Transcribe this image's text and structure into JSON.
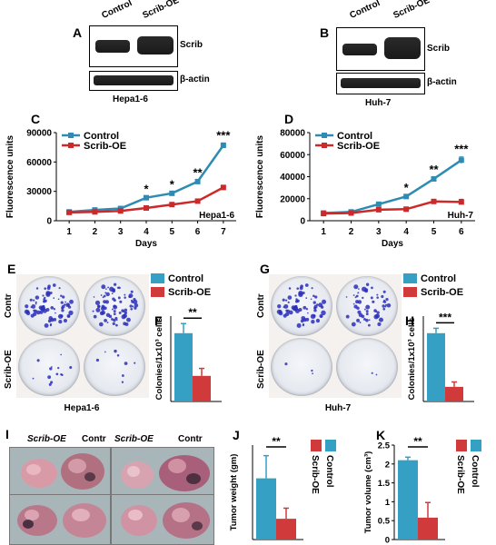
{
  "panels": {
    "A": {
      "letter": "A",
      "lanes": [
        "Control",
        "Scrib-OE"
      ],
      "bands": [
        "Scrib",
        "β-actin"
      ],
      "cell_line": "Hepa1-6"
    },
    "B": {
      "letter": "B",
      "lanes": [
        "Control",
        "Scrib-OE"
      ],
      "bands": [
        "Scrib",
        "β-actin"
      ],
      "cell_line": "Huh-7"
    },
    "E": {
      "letter": "E",
      "rows": [
        "Contr",
        "Scrib-OE"
      ],
      "cell_line": "Hepa1-6"
    },
    "G": {
      "letter": "G",
      "rows": [
        "Contr",
        "Scrib-OE"
      ],
      "cell_line": "Huh-7"
    },
    "I": {
      "letter": "I",
      "labels": [
        "Scrib-OE",
        "Contr",
        "Scrib-OE",
        "Contr"
      ]
    }
  },
  "colors": {
    "control": "#2e8bb4",
    "scrib": "#cc2a2a",
    "bar_control": "#35a0c4",
    "bar_scrib": "#d13a3a"
  },
  "chart_data": [
    {
      "id": "C",
      "letter": "C",
      "type": "line",
      "xlabel": "Days",
      "ylabel": "Fluorescence units",
      "annotation": "Hepa1-6",
      "x": [
        1,
        2,
        3,
        4,
        5,
        6,
        7
      ],
      "xlim": [
        0.5,
        7.5
      ],
      "ylim": [
        0,
        90000
      ],
      "yticks": [
        0,
        30000,
        60000,
        90000
      ],
      "series": [
        {
          "name": "Control",
          "color": "#2e8bb4",
          "values": [
            9000,
            11000,
            12500,
            23500,
            28000,
            40000,
            77000
          ],
          "errors": [
            500,
            600,
            600,
            1200,
            1200,
            1500,
            2500
          ]
        },
        {
          "name": "Scrib-OE",
          "color": "#cc2a2a",
          "values": [
            8500,
            9000,
            10000,
            13000,
            16500,
            20000,
            34000
          ],
          "errors": [
            500,
            500,
            600,
            800,
            900,
            1000,
            2000
          ]
        }
      ],
      "significance": [
        {
          "x": 4,
          "label": "*"
        },
        {
          "x": 5,
          "label": "*"
        },
        {
          "x": 6,
          "label": "**"
        },
        {
          "x": 7,
          "label": "***"
        }
      ],
      "legend": "top-left"
    },
    {
      "id": "D",
      "letter": "D",
      "type": "line",
      "xlabel": "Days",
      "ylabel": "Fluorescence units",
      "annotation": "Huh-7",
      "x": [
        1,
        2,
        3,
        4,
        5,
        6
      ],
      "xlim": [
        0.5,
        6.5
      ],
      "ylim": [
        0,
        80000
      ],
      "yticks": [
        0,
        20000,
        40000,
        60000,
        80000
      ],
      "series": [
        {
          "name": "Control",
          "color": "#2e8bb4",
          "values": [
            7000,
            8000,
            15000,
            22000,
            38000,
            55000
          ],
          "errors": [
            500,
            600,
            800,
            1000,
            1500,
            3000
          ]
        },
        {
          "name": "Scrib-OE",
          "color": "#cc2a2a",
          "values": [
            6500,
            7000,
            10000,
            10500,
            17500,
            17000
          ],
          "errors": [
            500,
            500,
            600,
            700,
            1200,
            2500
          ]
        }
      ],
      "significance": [
        {
          "x": 4,
          "label": "*"
        },
        {
          "x": 5,
          "label": "**"
        },
        {
          "x": 6,
          "label": "***"
        }
      ],
      "legend": "top-left"
    },
    {
      "id": "F",
      "letter": "F",
      "type": "bar",
      "categories": [
        "Control",
        "Scrib-OE"
      ],
      "values": [
        64,
        24
      ],
      "errors": [
        9,
        7
      ],
      "ylabel": "Colonies/1x10³ cells",
      "ylim": [
        0,
        80
      ],
      "significance": "**",
      "legend": [
        "Control",
        "Scrib-OE"
      ]
    },
    {
      "id": "H",
      "letter": "H",
      "type": "bar",
      "categories": [
        "Control",
        "Scrib-OE"
      ],
      "values": [
        56,
        12
      ],
      "errors": [
        4,
        4
      ],
      "ylabel": "Colonies/1x10³ cells",
      "ylim": [
        0,
        70
      ],
      "significance": "***",
      "legend": [
        "Control",
        "Scrib-OE"
      ]
    },
    {
      "id": "J",
      "letter": "J",
      "type": "bar",
      "categories": [
        "Control",
        "Scrib-OE"
      ],
      "values": [
        1.62,
        0.55
      ],
      "errors": [
        0.6,
        0.28
      ],
      "ylabel": "Tumor weight (gm)",
      "ylim": [
        0,
        2.5
      ],
      "significance": "**",
      "legend": [
        "Control",
        "Scrib-OE"
      ]
    },
    {
      "id": "K",
      "letter": "K",
      "type": "bar",
      "categories": [
        "Control",
        "Scrib-OE"
      ],
      "values": [
        2.1,
        0.58
      ],
      "errors": [
        0.08,
        0.4
      ],
      "ylabel": "Tumor volume (cm³)",
      "ylim": [
        0,
        2.5
      ],
      "yticks": [
        0,
        0.5,
        1,
        1.5,
        2,
        2.5
      ],
      "significance": "**",
      "legend": [
        "Control",
        "Scrib-OE"
      ]
    }
  ]
}
